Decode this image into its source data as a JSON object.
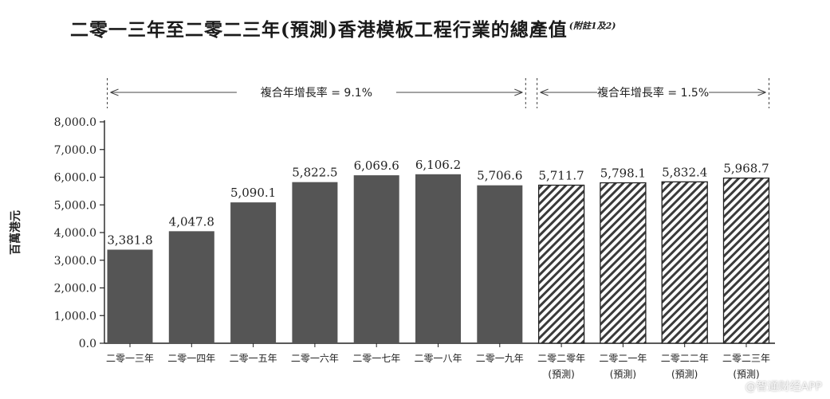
{
  "title": "二零一三年至二零二三年(預測)香港模板工程行業的總產值",
  "title_note": "(附註1及2)",
  "watermark": "@智通财经APP",
  "colors": {
    "actual_bar": "#555555",
    "forecast_hatch": "#333333",
    "axis": "#222222"
  },
  "cagr": [
    {
      "label": "複合年增長率 = 9.1%",
      "from_index": 0,
      "to_index": 6
    },
    {
      "label": "複合年增長率 = 1.5%",
      "from_index": 7,
      "to_index": 10
    }
  ],
  "chart_data": {
    "type": "bar",
    "title": "二零一三年至二零二三年(預測)香港模板工程行業的總產值",
    "ylabel": "百萬港元",
    "xlabel": "",
    "ylim": [
      0,
      8000
    ],
    "yticks": [
      "0.0",
      "1,000.0",
      "2,000.0",
      "3,000.0",
      "4,000.0",
      "5,000.0",
      "6,000.0",
      "7,000.0",
      "8,000.0"
    ],
    "categories": [
      "二零一三年",
      "二零一四年",
      "二零一五年",
      "二零一六年",
      "二零一七年",
      "二零一八年",
      "二零一九年",
      "二零二零年",
      "二零二一年",
      "二零二二年",
      "二零二三年"
    ],
    "category_sublabels": [
      "",
      "",
      "",
      "",
      "",
      "",
      "",
      "(預測)",
      "(預測)",
      "(預測)",
      "(預測)"
    ],
    "values": [
      3381.8,
      4047.8,
      5090.1,
      5822.5,
      6069.6,
      6106.2,
      5706.6,
      5711.7,
      5798.1,
      5832.4,
      5968.7
    ],
    "value_labels": [
      "3,381.8",
      "4,047.8",
      "5,090.1",
      "5,822.5",
      "6,069.6",
      "6,106.2",
      "5,706.6",
      "5,711.7",
      "5,798.1",
      "5,832.4",
      "5,968.7"
    ],
    "forecast": [
      false,
      false,
      false,
      false,
      false,
      false,
      false,
      true,
      true,
      true,
      true
    ],
    "grid": false,
    "legend": "none"
  }
}
